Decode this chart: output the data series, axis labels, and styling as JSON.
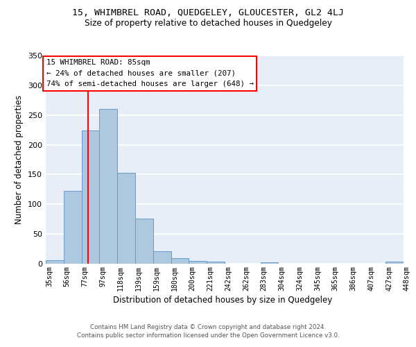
{
  "title": "15, WHIMBREL ROAD, QUEDGELEY, GLOUCESTER, GL2 4LJ",
  "subtitle": "Size of property relative to detached houses in Quedgeley",
  "xlabel": "Distribution of detached houses by size in Quedgeley",
  "ylabel": "Number of detached properties",
  "footnote1": "Contains HM Land Registry data © Crown copyright and database right 2024.",
  "footnote2": "Contains public sector information licensed under the Open Government Licence v3.0.",
  "bin_labels": [
    "35sqm",
    "56sqm",
    "77sqm",
    "97sqm",
    "118sqm",
    "139sqm",
    "159sqm",
    "180sqm",
    "200sqm",
    "221sqm",
    "242sqm",
    "262sqm",
    "283sqm",
    "304sqm",
    "324sqm",
    "345sqm",
    "365sqm",
    "386sqm",
    "407sqm",
    "427sqm",
    "448sqm"
  ],
  "bar_values": [
    6,
    122,
    224,
    260,
    153,
    76,
    21,
    9,
    5,
    3,
    0,
    0,
    2,
    0,
    0,
    0,
    0,
    0,
    0,
    3
  ],
  "bar_color": "#aec8e0",
  "bar_edge_color": "#6699cc",
  "annotation_box_text": "15 WHIMBREL ROAD: 85sqm\n← 24% of detached houses are smaller (207)\n74% of semi-detached houses are larger (648) →",
  "red_line_x": 1.85,
  "ylim": [
    0,
    350
  ],
  "yticks": [
    0,
    50,
    100,
    150,
    200,
    250,
    300,
    350
  ],
  "background_color": "#e8eef8",
  "grid_color": "#ffffff"
}
